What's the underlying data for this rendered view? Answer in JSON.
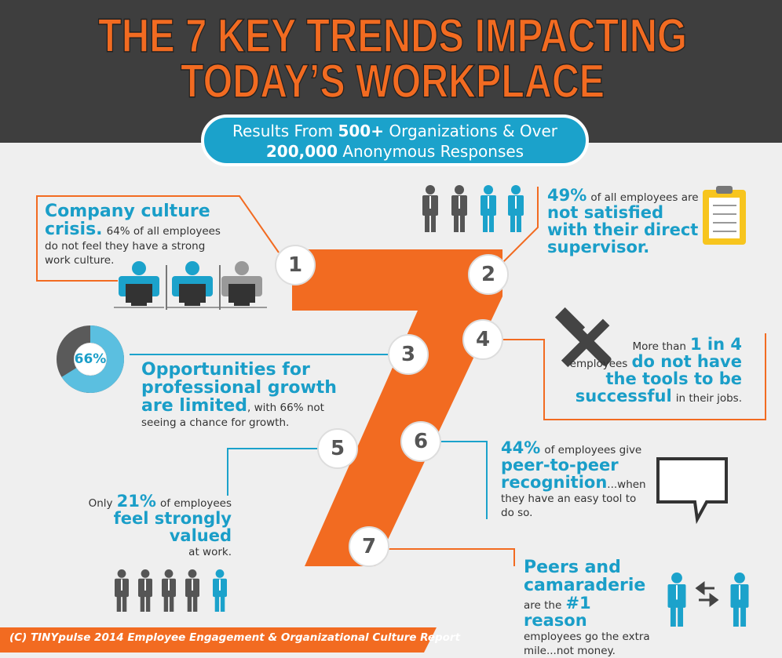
{
  "header": {
    "title": [
      "THE 7 KEY TRENDS IMPACTING",
      "TODAY’S WORKPLACE"
    ],
    "subtitle": [
      "Results From",
      "500+",
      "Organizations & Over",
      "200,000",
      "Anonymous Responses"
    ]
  },
  "trends": [
    {
      "number": 1,
      "text": [
        "Company culture crisis.",
        "64% of all employees do not feel they have a strong work culture."
      ]
    },
    {
      "number": 2,
      "text": [
        "49%",
        "of all employees are",
        "not satisfied with their direct supervisor."
      ]
    },
    {
      "number": 3,
      "chart": {
        "value": 66,
        "label": "66%"
      },
      "text": [
        "Opportunities for professional growth are limited",
        ", with 66% not seeing a chance for growth."
      ]
    },
    {
      "number": 4,
      "text": [
        "More than",
        "1 in 4",
        "employees",
        "do not have the tools to be successful",
        "in their jobs."
      ]
    },
    {
      "number": 5,
      "text": [
        "Only",
        "21%",
        "of employees",
        "feel strongly valued",
        "at work."
      ]
    },
    {
      "number": 6,
      "text": [
        "44%",
        "of employees give",
        "peer-to-peer recognition",
        "...when they have an easy tool to do so."
      ]
    },
    {
      "number": 7,
      "text": [
        "Peers and camaraderie",
        "are the",
        "#1 reason",
        "employees go the extra mile...not money."
      ]
    }
  ],
  "footer": "(C) TINYpulse 2014 Employee Engagement & Organizational Culture Report"
}
